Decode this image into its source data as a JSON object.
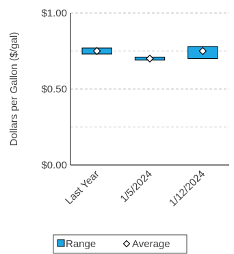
{
  "chart_data": {
    "type": "bar",
    "subtype": "floating-range-with-average",
    "categories": [
      "Last Year",
      "1/5/2024",
      "1/12/2024"
    ],
    "series": [
      {
        "name": "Range",
        "low": [
          0.73,
          0.69,
          0.7
        ],
        "high": [
          0.77,
          0.71,
          0.78
        ],
        "color": "#1ea7e4"
      },
      {
        "name": "Average",
        "values": [
          0.75,
          0.7,
          0.75
        ],
        "marker": "diamond"
      }
    ],
    "title": "",
    "xlabel": "",
    "ylabel": "Dollars per Gallon ($/gal)",
    "ylim": [
      0,
      1
    ],
    "yticks": [
      0,
      0.5,
      1
    ],
    "ytick_labels": [
      "$0.00",
      "$0.50",
      "$1.00"
    ],
    "gridlines": [
      0.25,
      0.5,
      0.75,
      1.0
    ],
    "grid": true,
    "legend": {
      "position": "bottom",
      "entries": [
        "Range",
        "Average"
      ]
    }
  }
}
